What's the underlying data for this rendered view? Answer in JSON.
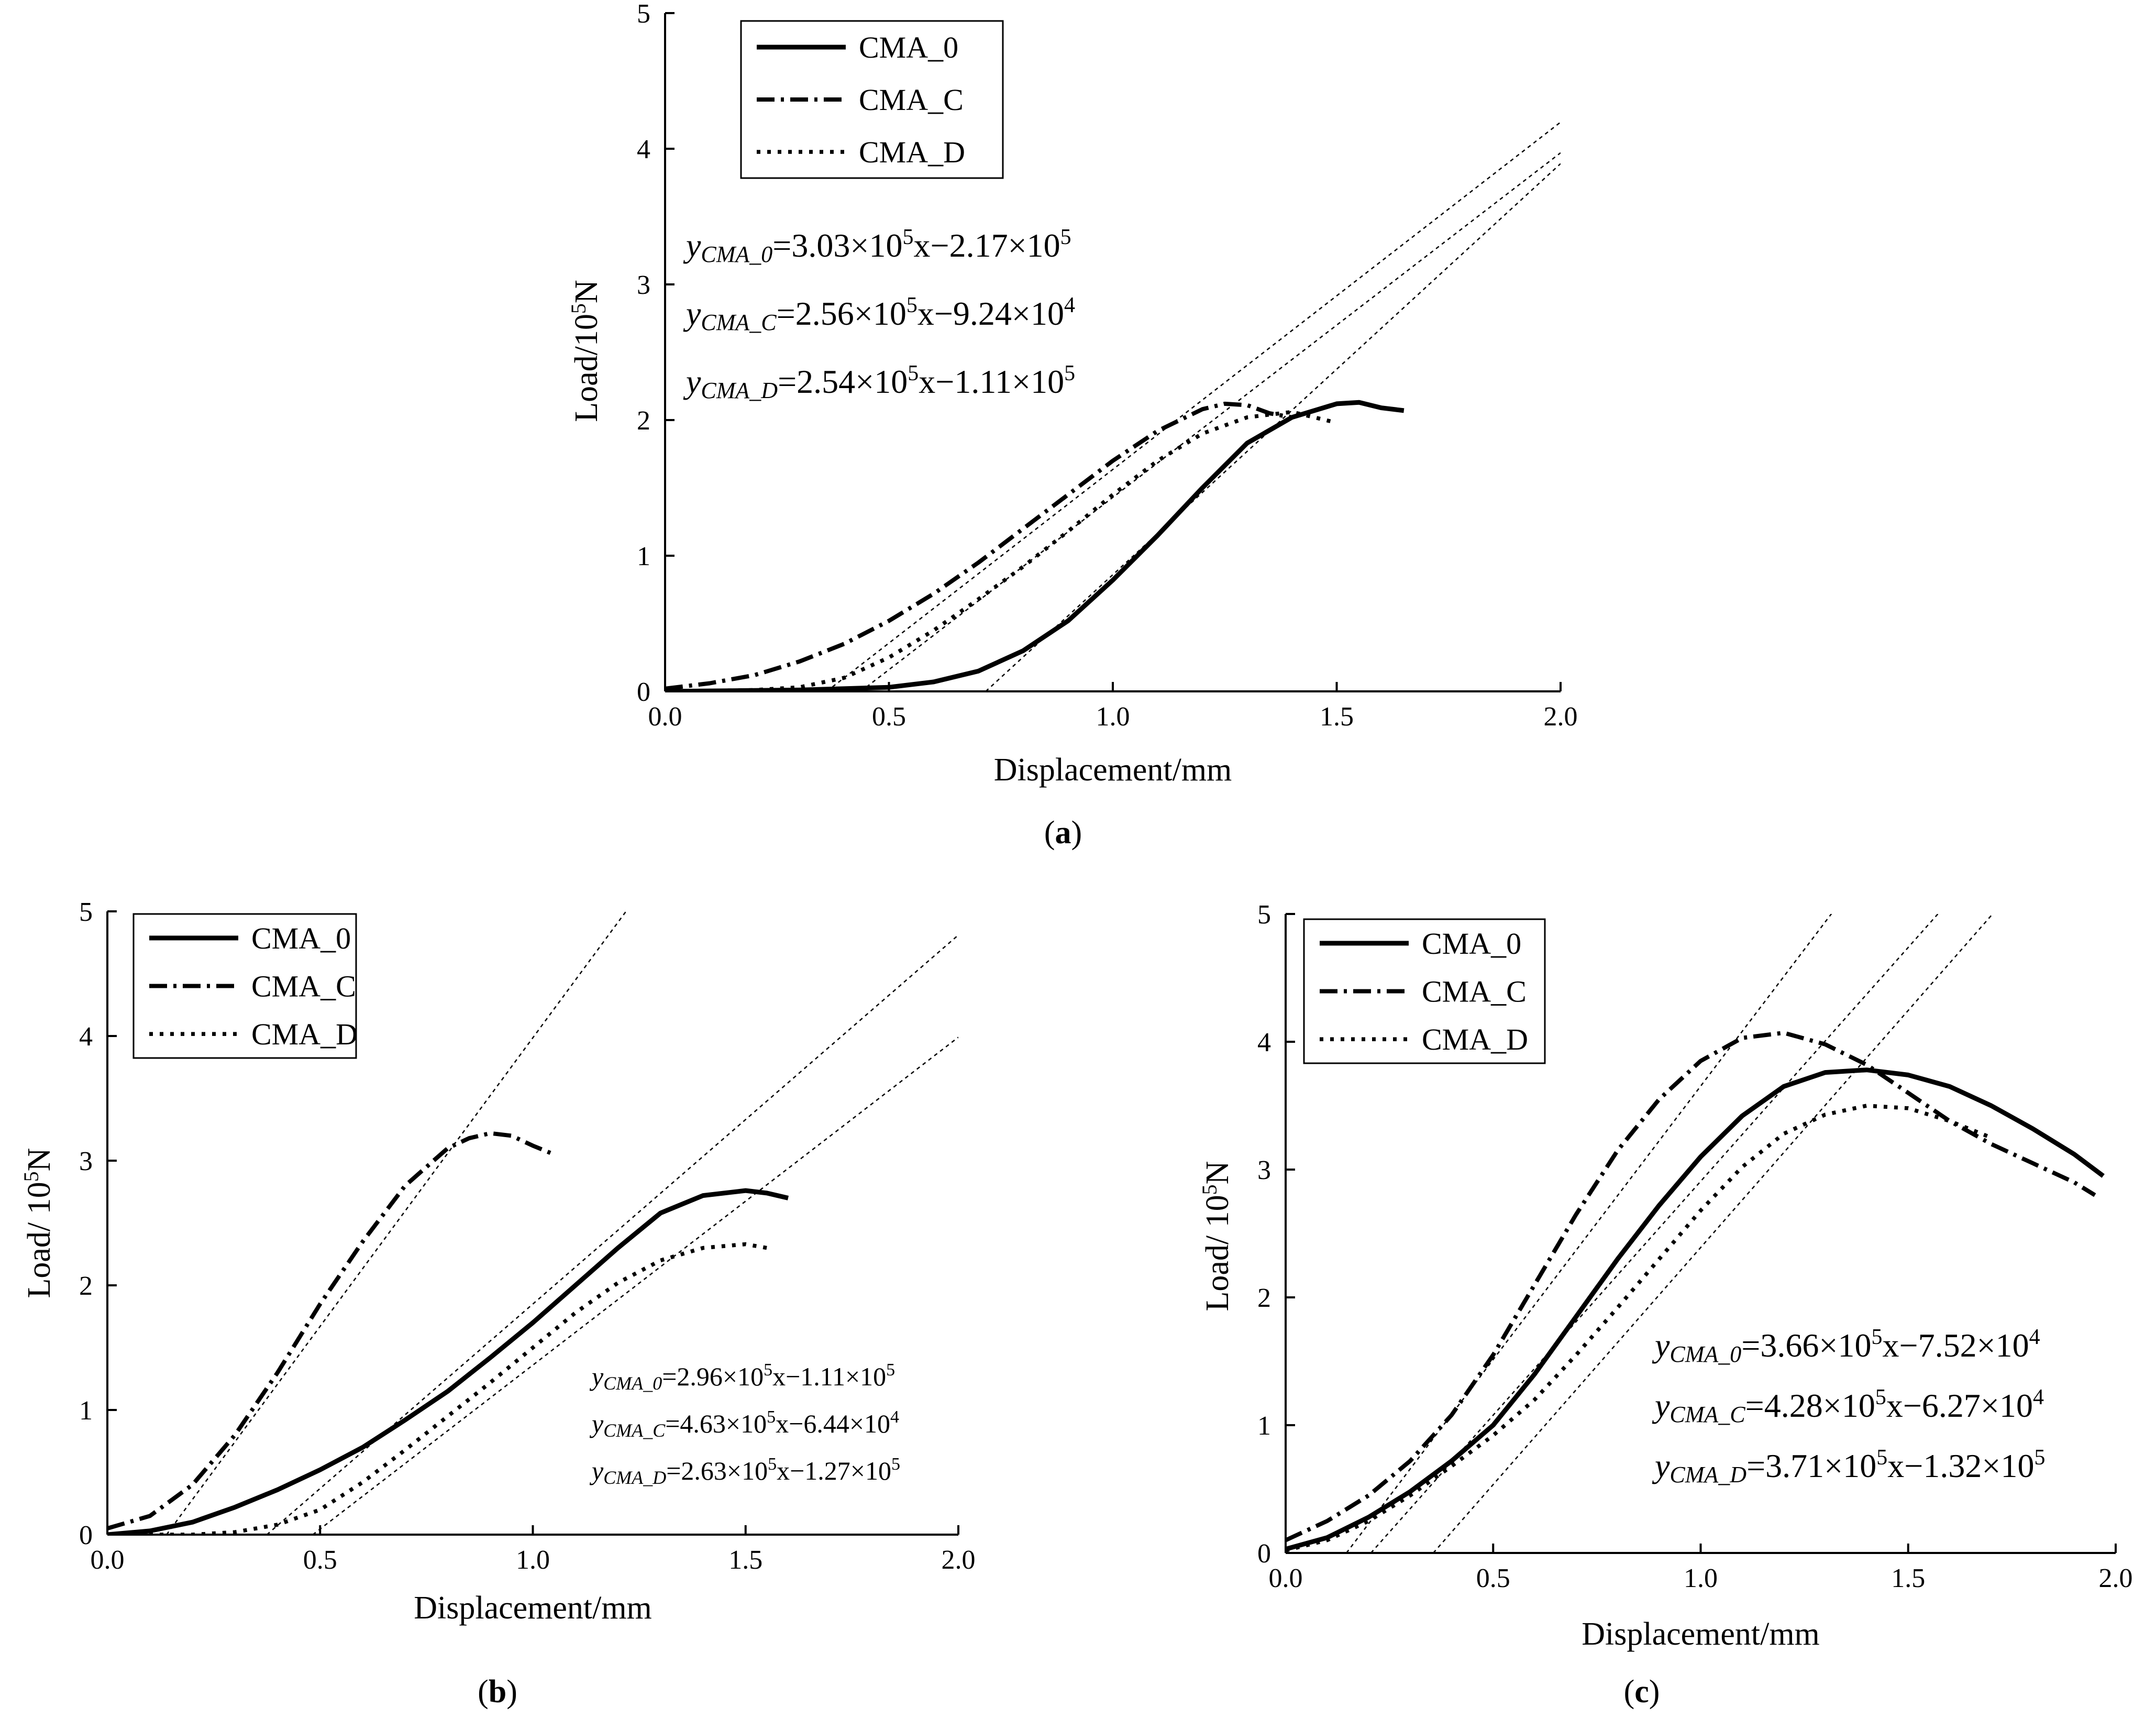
{
  "chart_data": [
    {
      "panel": "(a)",
      "type": "line",
      "xlabel": "Displacement/mm",
      "ylabel": "Load/10^5N",
      "xlim": [
        0,
        2.0
      ],
      "ylim": [
        0,
        5
      ],
      "xticks": [
        "0.0",
        "0.5",
        "1.0",
        "1.5",
        "2.0"
      ],
      "yticks": [
        "0",
        "1",
        "2",
        "3",
        "4",
        "5"
      ],
      "legend": [
        "CMA_0",
        "CMA_C",
        "CMA_D"
      ],
      "legend_position": "top-left",
      "series": [
        {
          "name": "CMA_0",
          "style": "solid",
          "x": [
            0,
            0.3,
            0.5,
            0.6,
            0.7,
            0.8,
            0.9,
            1.0,
            1.1,
            1.2,
            1.3,
            1.4,
            1.5,
            1.55,
            1.6,
            1.65
          ],
          "y": [
            0,
            0.01,
            0.03,
            0.07,
            0.15,
            0.3,
            0.52,
            0.82,
            1.15,
            1.5,
            1.83,
            2.02,
            2.12,
            2.13,
            2.09,
            2.07
          ]
        },
        {
          "name": "CMA_C",
          "style": "dashdot",
          "x": [
            0,
            0.1,
            0.2,
            0.3,
            0.4,
            0.5,
            0.6,
            0.7,
            0.8,
            0.9,
            1.0,
            1.1,
            1.2,
            1.25,
            1.3,
            1.35,
            1.4
          ],
          "y": [
            0.02,
            0.06,
            0.12,
            0.22,
            0.35,
            0.52,
            0.72,
            0.95,
            1.2,
            1.45,
            1.7,
            1.92,
            2.08,
            2.12,
            2.11,
            2.05,
            2.02
          ]
        },
        {
          "name": "CMA_D",
          "style": "dotted",
          "x": [
            0,
            0.2,
            0.3,
            0.4,
            0.5,
            0.6,
            0.7,
            0.8,
            0.9,
            1.0,
            1.1,
            1.2,
            1.3,
            1.4,
            1.5
          ],
          "y": [
            0,
            0.01,
            0.03,
            0.1,
            0.25,
            0.45,
            0.68,
            0.92,
            1.18,
            1.45,
            1.7,
            1.9,
            2.02,
            2.06,
            1.98
          ]
        }
      ],
      "fits": [
        {
          "name": "CMA_0",
          "slope": 3.03,
          "intercept": -2.17
        },
        {
          "name": "CMA_C",
          "slope": 2.56,
          "intercept": -0.924
        },
        {
          "name": "CMA_D",
          "slope": 2.54,
          "intercept": -1.11
        }
      ],
      "equations": [
        {
          "sub": "CMA_0",
          "rest": "=3.03×10",
          "exp1": "5",
          "mid": "x−2.17×10",
          "exp2": "5"
        },
        {
          "sub": "CMA_C",
          "rest": "=2.56×10",
          "exp1": "5",
          "mid": "x−9.24×10",
          "exp2": "4"
        },
        {
          "sub": "CMA_D",
          "rest": "=2.54×10",
          "exp1": "5",
          "mid": "x−1.11×10",
          "exp2": "5"
        }
      ]
    },
    {
      "panel": "(b)",
      "type": "line",
      "xlabel": "Displacement/mm",
      "ylabel": "Load/ 10^5N",
      "xlim": [
        0,
        2.0
      ],
      "ylim": [
        0,
        5
      ],
      "xticks": [
        "0.0",
        "0.5",
        "1.0",
        "1.5",
        "2.0"
      ],
      "yticks": [
        "0",
        "1",
        "2",
        "3",
        "4",
        "5"
      ],
      "legend": [
        "CMA_0",
        "CMA_C",
        "CMA_D"
      ],
      "legend_position": "top-left",
      "series": [
        {
          "name": "CMA_0",
          "style": "solid",
          "x": [
            0,
            0.1,
            0.2,
            0.3,
            0.4,
            0.5,
            0.6,
            0.7,
            0.8,
            0.9,
            1.0,
            1.1,
            1.2,
            1.3,
            1.4,
            1.5,
            1.55,
            1.6
          ],
          "y": [
            0,
            0.03,
            0.1,
            0.22,
            0.36,
            0.52,
            0.7,
            0.92,
            1.15,
            1.42,
            1.7,
            2.0,
            2.3,
            2.58,
            2.72,
            2.76,
            2.74,
            2.7
          ]
        },
        {
          "name": "CMA_C",
          "style": "dashdot",
          "x": [
            0,
            0.1,
            0.2,
            0.3,
            0.4,
            0.5,
            0.6,
            0.7,
            0.8,
            0.85,
            0.9,
            0.95,
            1.0,
            1.05
          ],
          "y": [
            0.05,
            0.15,
            0.4,
            0.8,
            1.3,
            1.85,
            2.35,
            2.8,
            3.1,
            3.18,
            3.22,
            3.2,
            3.12,
            3.05
          ]
        },
        {
          "name": "CMA_D",
          "style": "dotted",
          "x": [
            0,
            0.2,
            0.3,
            0.4,
            0.5,
            0.6,
            0.7,
            0.8,
            0.9,
            1.0,
            1.1,
            1.2,
            1.3,
            1.4,
            1.5,
            1.55
          ],
          "y": [
            0,
            0.0,
            0.02,
            0.08,
            0.2,
            0.42,
            0.68,
            0.95,
            1.22,
            1.5,
            1.78,
            2.02,
            2.2,
            2.3,
            2.33,
            2.3
          ]
        }
      ],
      "fits": [
        {
          "name": "CMA_0",
          "slope": 2.96,
          "intercept": -1.11
        },
        {
          "name": "CMA_C",
          "slope": 4.63,
          "intercept": -0.644
        },
        {
          "name": "CMA_D",
          "slope": 2.63,
          "intercept": -1.27
        }
      ],
      "equations": [
        {
          "sub": "CMA_0",
          "rest": "=2.96×10",
          "exp1": "5",
          "mid": "x−1.11×10",
          "exp2": "5"
        },
        {
          "sub": "CMA_C",
          "rest": "=4.63×10",
          "exp1": "5",
          "mid": "x−6.44×10",
          "exp2": "4"
        },
        {
          "sub": "CMA_D",
          "rest": "=2.63×10",
          "exp1": "5",
          "mid": "x−1.27×10",
          "exp2": "5"
        }
      ]
    },
    {
      "panel": "(c)",
      "type": "line",
      "xlabel": "Displacement/mm",
      "ylabel": "Load/ 10^5N",
      "xlim": [
        0,
        2.0
      ],
      "ylim": [
        0,
        5
      ],
      "xticks": [
        "0.0",
        "0.5",
        "1.0",
        "1.5",
        "2.0"
      ],
      "yticks": [
        "0",
        "1",
        "2",
        "3",
        "4",
        "5"
      ],
      "legend": [
        "CMA_0",
        "CMA_C",
        "CMA_D"
      ],
      "legend_position": "top-left",
      "series": [
        {
          "name": "CMA_0",
          "style": "solid",
          "x": [
            0,
            0.1,
            0.2,
            0.3,
            0.4,
            0.5,
            0.6,
            0.7,
            0.8,
            0.9,
            1.0,
            1.1,
            1.2,
            1.3,
            1.4,
            1.5,
            1.6,
            1.7,
            1.8,
            1.9,
            1.97
          ],
          "y": [
            0.03,
            0.12,
            0.28,
            0.48,
            0.72,
            1.0,
            1.4,
            1.85,
            2.3,
            2.72,
            3.1,
            3.42,
            3.65,
            3.76,
            3.78,
            3.74,
            3.65,
            3.5,
            3.32,
            3.12,
            2.95
          ]
        },
        {
          "name": "CMA_C",
          "style": "dashdot",
          "x": [
            0,
            0.1,
            0.2,
            0.3,
            0.4,
            0.5,
            0.6,
            0.7,
            0.8,
            0.9,
            1.0,
            1.1,
            1.2,
            1.3,
            1.4,
            1.5,
            1.6,
            1.7,
            1.8,
            1.9,
            1.95
          ],
          "y": [
            0.1,
            0.25,
            0.45,
            0.72,
            1.08,
            1.55,
            2.1,
            2.65,
            3.15,
            3.55,
            3.85,
            4.03,
            4.07,
            3.98,
            3.82,
            3.6,
            3.38,
            3.2,
            3.05,
            2.9,
            2.8
          ]
        },
        {
          "name": "CMA_D",
          "style": "dotted",
          "x": [
            0,
            0.1,
            0.2,
            0.3,
            0.4,
            0.5,
            0.6,
            0.7,
            0.8,
            0.9,
            1.0,
            1.1,
            1.2,
            1.3,
            1.4,
            1.5,
            1.6,
            1.7
          ],
          "y": [
            0.02,
            0.1,
            0.25,
            0.45,
            0.68,
            0.92,
            1.2,
            1.55,
            1.92,
            2.3,
            2.68,
            3.02,
            3.28,
            3.43,
            3.5,
            3.48,
            3.38,
            3.25
          ]
        }
      ],
      "fits": [
        {
          "name": "CMA_0",
          "slope": 3.66,
          "intercept": -0.752
        },
        {
          "name": "CMA_C",
          "slope": 4.28,
          "intercept": -0.627
        },
        {
          "name": "CMA_D",
          "slope": 3.71,
          "intercept": -1.32
        }
      ],
      "equations": [
        {
          "sub": "CMA_0",
          "rest": "=3.66×10",
          "exp1": "5",
          "mid": "x−7.52×10",
          "exp2": "4"
        },
        {
          "sub": "CMA_C",
          "rest": "=4.28×10",
          "exp1": "5",
          "mid": "x−6.27×10",
          "exp2": "4"
        },
        {
          "sub": "CMA_D",
          "rest": "=3.71×10",
          "exp1": "5",
          "mid": "x−1.32×10",
          "exp2": "5"
        }
      ]
    }
  ]
}
